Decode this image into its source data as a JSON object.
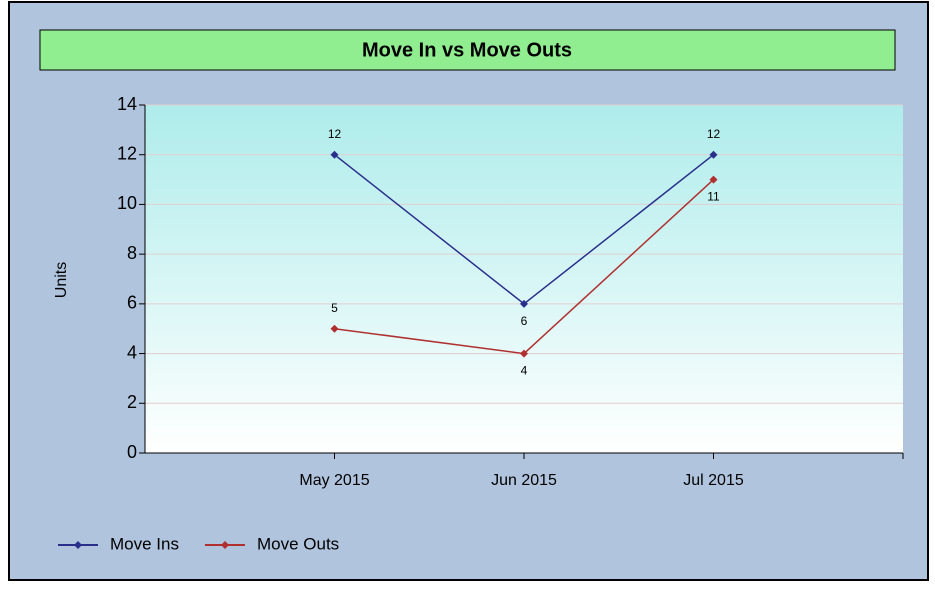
{
  "chart_data": {
    "type": "line",
    "title": "Move In vs Move Outs",
    "y_label": "Units",
    "categories": [
      "May 2015",
      "Jun 2015",
      "Jul 2015"
    ],
    "series": [
      {
        "name": "Move Ins",
        "color": "#2b2f8c",
        "values": [
          12,
          6,
          12
        ]
      },
      {
        "name": "Move Outs",
        "color": "#b03030",
        "values": [
          5,
          4,
          11
        ]
      }
    ],
    "ylim": [
      0,
      14
    ],
    "yticks": [
      0,
      2,
      4,
      6,
      8,
      10,
      12,
      14
    ],
    "grid": true,
    "legend": "bottom-left"
  }
}
